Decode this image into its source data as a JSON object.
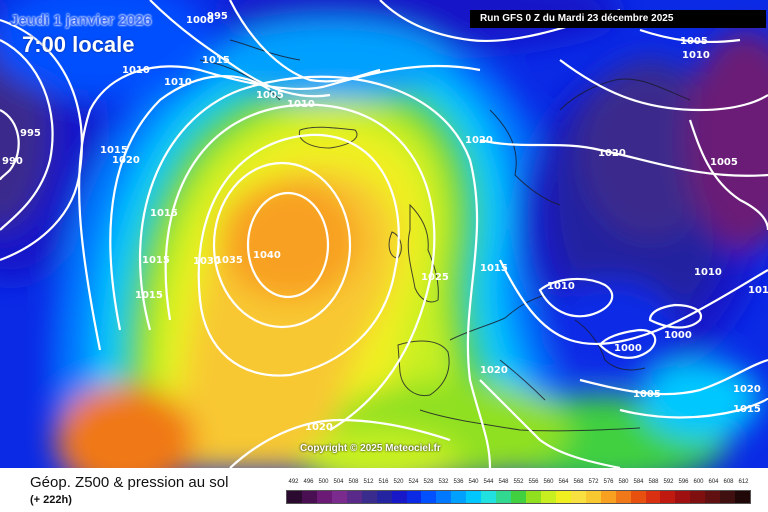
{
  "header": {
    "date_line": "Jeudi 1 janvier 2026",
    "time_line": "7:00 locale",
    "run_info": "Run GFS 0 Z du Mardi 23 décembre 2025"
  },
  "copyright": "Copyright © 2025 Meteociel.fr",
  "legend": {
    "title": "Géop. Z500 & pression au sol",
    "subtitle": "(+ 222h)",
    "scale_values": [
      "492",
      "496",
      "500",
      "504",
      "508",
      "512",
      "516",
      "520",
      "524",
      "528",
      "532",
      "536",
      "540",
      "544",
      "548",
      "552",
      "556",
      "560",
      "564",
      "568",
      "572",
      "576",
      "580",
      "584",
      "588",
      "592",
      "596",
      "600",
      "604",
      "608",
      "612"
    ],
    "scale_colors": [
      "#2a0a2e",
      "#4a0f52",
      "#6b1a76",
      "#7b2a8e",
      "#5a2a8a",
      "#3a2c8c",
      "#2424a0",
      "#1818c8",
      "#0a2ae6",
      "#0050ff",
      "#0078ff",
      "#00a0ff",
      "#00c8ff",
      "#20e0e0",
      "#30d890",
      "#40d040",
      "#90e020",
      "#c8f020",
      "#f0f020",
      "#f8e040",
      "#f8c830",
      "#f8a020",
      "#f07818",
      "#e85010",
      "#d83010",
      "#c01a10",
      "#a01010",
      "#801010",
      "#601010",
      "#401010",
      "#200808"
    ]
  },
  "isobars": [
    {
      "value": "1000",
      "id": "p1"
    },
    {
      "value": "995",
      "id": "p2"
    },
    {
      "value": "1010",
      "id": "p3"
    },
    {
      "value": "1010",
      "id": "p4"
    },
    {
      "value": "1015",
      "id": "p5"
    },
    {
      "value": "1005",
      "id": "p6"
    },
    {
      "value": "1010",
      "id": "p7"
    },
    {
      "value": "995",
      "id": "p8"
    },
    {
      "value": "990",
      "id": "p9"
    },
    {
      "value": "1015",
      "id": "p10"
    },
    {
      "value": "1020",
      "id": "p11"
    },
    {
      "value": "1015",
      "id": "p12"
    },
    {
      "value": "1015",
      "id": "p13"
    },
    {
      "value": "1015",
      "id": "p14"
    },
    {
      "value": "1030",
      "id": "p15"
    },
    {
      "value": "1035",
      "id": "p16"
    },
    {
      "value": "1040",
      "id": "p17"
    },
    {
      "value": "1020",
      "id": "p18"
    },
    {
      "value": "1025",
      "id": "p19"
    },
    {
      "value": "1015",
      "id": "p20"
    },
    {
      "value": "1010",
      "id": "p21"
    },
    {
      "value": "1020",
      "id": "p22"
    },
    {
      "value": "1020",
      "id": "p23"
    },
    {
      "value": "1005",
      "id": "p24"
    },
    {
      "value": "1010",
      "id": "p25"
    },
    {
      "value": "1005",
      "id": "p26"
    },
    {
      "value": "1020",
      "id": "p27"
    },
    {
      "value": "1010",
      "id": "p28"
    },
    {
      "value": "1000",
      "id": "p29"
    },
    {
      "value": "1000",
      "id": "p30"
    },
    {
      "value": "1005",
      "id": "p31"
    },
    {
      "value": "1020",
      "id": "p32"
    },
    {
      "value": "1015",
      "id": "p33"
    },
    {
      "value": "101",
      "id": "p34"
    }
  ]
}
